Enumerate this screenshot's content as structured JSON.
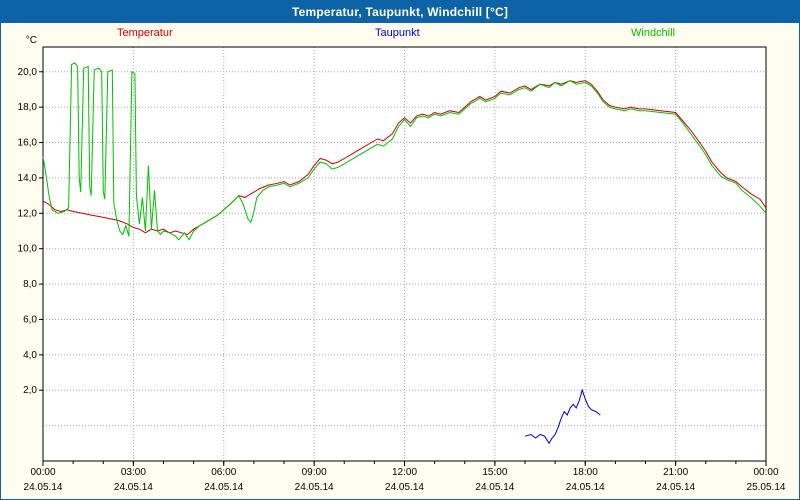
{
  "window": {
    "title": "Temperatur, Taupunkt, Windchill [°C]"
  },
  "legend": [
    {
      "label": "Temperatur",
      "color": "#cc0000"
    },
    {
      "label": "Taupunkt",
      "color": "#0000cc"
    },
    {
      "label": "Windchill",
      "color": "#00c000"
    }
  ],
  "chart_data": {
    "type": "line",
    "title": "Temperatur, Taupunkt, Windchill [°C]",
    "ylabel": "°C",
    "xlabel": "",
    "ylim": [
      -2,
      21.4
    ],
    "xlim_hours": [
      0,
      24
    ],
    "grid": true,
    "legend_position": "top",
    "grid_values": [
      0,
      2,
      4,
      6,
      8,
      10,
      12,
      14,
      16,
      18,
      20
    ],
    "y_ticks": [
      {
        "v": 20,
        "label": "20,0"
      },
      {
        "v": 18,
        "label": "18,0"
      },
      {
        "v": 16,
        "label": "16,0"
      },
      {
        "v": 14,
        "label": "14,0"
      },
      {
        "v": 12,
        "label": "12,0"
      },
      {
        "v": 10,
        "label": "10,0"
      },
      {
        "v": 8,
        "label": "8,0"
      },
      {
        "v": 6,
        "label": "6,0"
      },
      {
        "v": 4,
        "label": "4,0"
      },
      {
        "v": 2,
        "label": "2,0"
      }
    ],
    "x_ticks": [
      {
        "h": 0,
        "label": "00:00",
        "date": "24.05.14"
      },
      {
        "h": 3,
        "label": "03:00",
        "date": "24.05.14"
      },
      {
        "h": 6,
        "label": "06:00",
        "date": "24.05.14"
      },
      {
        "h": 9,
        "label": "09:00",
        "date": "24.05.14"
      },
      {
        "h": 12,
        "label": "12:00",
        "date": "24.05.14"
      },
      {
        "h": 15,
        "label": "15:00",
        "date": "24.05.14"
      },
      {
        "h": 18,
        "label": "18:00",
        "date": "24.05.14"
      },
      {
        "h": 21,
        "label": "21:00",
        "date": "24.05.14"
      },
      {
        "h": 24,
        "label": "00:00",
        "date": "25.05.14"
      }
    ],
    "series": [
      {
        "name": "Temperatur",
        "color": "#cc0000",
        "points": [
          [
            0,
            12.7
          ],
          [
            0.2,
            12.5
          ],
          [
            0.4,
            12.2
          ],
          [
            0.6,
            12.1
          ],
          [
            0.8,
            12.2
          ],
          [
            1.0,
            12.1
          ],
          [
            1.3,
            12.0
          ],
          [
            1.6,
            11.9
          ],
          [
            1.9,
            11.8
          ],
          [
            2.2,
            11.7
          ],
          [
            2.5,
            11.6
          ],
          [
            2.8,
            11.4
          ],
          [
            3.0,
            11.2
          ],
          [
            3.2,
            11.1
          ],
          [
            3.4,
            10.9
          ],
          [
            3.6,
            11.1
          ],
          [
            3.8,
            11.0
          ],
          [
            4.0,
            11.1
          ],
          [
            4.2,
            10.9
          ],
          [
            4.4,
            11.0
          ],
          [
            4.6,
            10.9
          ],
          [
            4.8,
            10.8
          ],
          [
            5.0,
            11.1
          ],
          [
            5.2,
            11.3
          ],
          [
            5.5,
            11.6
          ],
          [
            5.8,
            11.9
          ],
          [
            6.0,
            12.2
          ],
          [
            6.2,
            12.5
          ],
          [
            6.5,
            13.0
          ],
          [
            6.7,
            12.9
          ],
          [
            7.0,
            13.2
          ],
          [
            7.2,
            13.4
          ],
          [
            7.5,
            13.6
          ],
          [
            7.8,
            13.7
          ],
          [
            8.0,
            13.8
          ],
          [
            8.2,
            13.6
          ],
          [
            8.5,
            13.8
          ],
          [
            8.8,
            14.2
          ],
          [
            9.0,
            14.7
          ],
          [
            9.2,
            15.1
          ],
          [
            9.4,
            15.0
          ],
          [
            9.6,
            14.8
          ],
          [
            9.8,
            14.9
          ],
          [
            10.0,
            15.1
          ],
          [
            10.3,
            15.4
          ],
          [
            10.6,
            15.7
          ],
          [
            10.9,
            16.0
          ],
          [
            11.1,
            16.2
          ],
          [
            11.3,
            16.1
          ],
          [
            11.6,
            16.5
          ],
          [
            11.8,
            17.1
          ],
          [
            12.0,
            17.4
          ],
          [
            12.2,
            17.1
          ],
          [
            12.4,
            17.5
          ],
          [
            12.6,
            17.6
          ],
          [
            12.8,
            17.5
          ],
          [
            13.0,
            17.7
          ],
          [
            13.2,
            17.6
          ],
          [
            13.5,
            17.8
          ],
          [
            13.8,
            17.7
          ],
          [
            14.0,
            18.0
          ],
          [
            14.2,
            18.3
          ],
          [
            14.5,
            18.6
          ],
          [
            14.7,
            18.4
          ],
          [
            15.0,
            18.6
          ],
          [
            15.2,
            18.9
          ],
          [
            15.5,
            18.8
          ],
          [
            15.8,
            19.1
          ],
          [
            16.0,
            19.2
          ],
          [
            16.2,
            19.0
          ],
          [
            16.5,
            19.3
          ],
          [
            16.8,
            19.2
          ],
          [
            17.0,
            19.4
          ],
          [
            17.2,
            19.3
          ],
          [
            17.5,
            19.5
          ],
          [
            17.7,
            19.4
          ],
          [
            18.0,
            19.5
          ],
          [
            18.2,
            19.3
          ],
          [
            18.4,
            18.9
          ],
          [
            18.6,
            18.4
          ],
          [
            18.8,
            18.1
          ],
          [
            19.0,
            18.0
          ],
          [
            19.3,
            17.9
          ],
          [
            19.5,
            18.0
          ],
          [
            19.8,
            17.9
          ],
          [
            20.0,
            17.9
          ],
          [
            20.5,
            17.8
          ],
          [
            21.0,
            17.7
          ],
          [
            21.2,
            17.3
          ],
          [
            21.5,
            16.7
          ],
          [
            21.8,
            16.0
          ],
          [
            22.0,
            15.5
          ],
          [
            22.2,
            14.9
          ],
          [
            22.5,
            14.3
          ],
          [
            22.7,
            14.0
          ],
          [
            23.0,
            13.8
          ],
          [
            23.2,
            13.5
          ],
          [
            23.5,
            13.1
          ],
          [
            23.8,
            12.8
          ],
          [
            24.0,
            12.3
          ]
        ]
      },
      {
        "name": "Taupunkt",
        "color": "#0000cc",
        "points": [
          [
            16.0,
            -0.6
          ],
          [
            16.2,
            -0.5
          ],
          [
            16.35,
            -0.7
          ],
          [
            16.5,
            -0.5
          ],
          [
            16.65,
            -0.6
          ],
          [
            16.8,
            -1.0
          ],
          [
            16.9,
            -0.7
          ],
          [
            17.0,
            -0.5
          ],
          [
            17.1,
            -0.1
          ],
          [
            17.2,
            0.4
          ],
          [
            17.3,
            0.8
          ],
          [
            17.4,
            0.6
          ],
          [
            17.5,
            1.0
          ],
          [
            17.6,
            1.2
          ],
          [
            17.7,
            1.0
          ],
          [
            17.8,
            1.4
          ],
          [
            17.9,
            2.0
          ],
          [
            18.0,
            1.5
          ],
          [
            18.1,
            1.1
          ],
          [
            18.2,
            0.9
          ],
          [
            18.35,
            0.8
          ],
          [
            18.5,
            0.6
          ]
        ]
      },
      {
        "name": "Windchill",
        "color": "#00c000",
        "points": [
          [
            0,
            15.2
          ],
          [
            0.1,
            14.2
          ],
          [
            0.2,
            13.0
          ],
          [
            0.3,
            12.2
          ],
          [
            0.5,
            12.0
          ],
          [
            0.7,
            12.1
          ],
          [
            0.85,
            12.3
          ],
          [
            0.95,
            20.4
          ],
          [
            1.05,
            20.5
          ],
          [
            1.15,
            20.3
          ],
          [
            1.2,
            14.0
          ],
          [
            1.25,
            13.2
          ],
          [
            1.35,
            20.2
          ],
          [
            1.5,
            20.3
          ],
          [
            1.55,
            13.5
          ],
          [
            1.6,
            13.0
          ],
          [
            1.7,
            20.1
          ],
          [
            1.85,
            20.2
          ],
          [
            1.95,
            20.0
          ],
          [
            2.0,
            13.2
          ],
          [
            2.05,
            12.8
          ],
          [
            2.15,
            20.0
          ],
          [
            2.3,
            20.1
          ],
          [
            2.35,
            12.6
          ],
          [
            2.45,
            11.6
          ],
          [
            2.55,
            11.0
          ],
          [
            2.65,
            10.8
          ],
          [
            2.75,
            11.3
          ],
          [
            2.85,
            10.7
          ],
          [
            2.95,
            20.0
          ],
          [
            3.05,
            19.9
          ],
          [
            3.1,
            13.0
          ],
          [
            3.2,
            11.4
          ],
          [
            3.3,
            12.9
          ],
          [
            3.4,
            11.0
          ],
          [
            3.5,
            14.7
          ],
          [
            3.6,
            11.1
          ],
          [
            3.7,
            13.3
          ],
          [
            3.8,
            11.0
          ],
          [
            3.9,
            10.8
          ],
          [
            4.0,
            11.0
          ],
          [
            4.2,
            10.9
          ],
          [
            4.4,
            10.7
          ],
          [
            4.5,
            10.5
          ],
          [
            4.7,
            10.9
          ],
          [
            4.85,
            10.5
          ],
          [
            5.0,
            11.0
          ],
          [
            5.2,
            11.3
          ],
          [
            5.5,
            11.6
          ],
          [
            5.8,
            11.9
          ],
          [
            6.0,
            12.2
          ],
          [
            6.2,
            12.5
          ],
          [
            6.5,
            13.0
          ],
          [
            6.65,
            12.5
          ],
          [
            6.8,
            11.7
          ],
          [
            6.9,
            11.5
          ],
          [
            7.0,
            12.1
          ],
          [
            7.1,
            12.9
          ],
          [
            7.3,
            13.3
          ],
          [
            7.5,
            13.5
          ],
          [
            7.8,
            13.6
          ],
          [
            8.0,
            13.7
          ],
          [
            8.2,
            13.5
          ],
          [
            8.5,
            13.7
          ],
          [
            8.8,
            14.0
          ],
          [
            9.0,
            14.5
          ],
          [
            9.2,
            14.9
          ],
          [
            9.4,
            14.8
          ],
          [
            9.6,
            14.5
          ],
          [
            9.8,
            14.6
          ],
          [
            10.0,
            14.8
          ],
          [
            10.3,
            15.1
          ],
          [
            10.6,
            15.4
          ],
          [
            10.9,
            15.7
          ],
          [
            11.1,
            15.9
          ],
          [
            11.3,
            15.8
          ],
          [
            11.6,
            16.2
          ],
          [
            11.8,
            16.9
          ],
          [
            12.0,
            17.3
          ],
          [
            12.2,
            16.9
          ],
          [
            12.4,
            17.4
          ],
          [
            12.6,
            17.5
          ],
          [
            12.8,
            17.4
          ],
          [
            13.0,
            17.6
          ],
          [
            13.2,
            17.5
          ],
          [
            13.5,
            17.7
          ],
          [
            13.8,
            17.6
          ],
          [
            14.0,
            17.9
          ],
          [
            14.2,
            18.2
          ],
          [
            14.5,
            18.5
          ],
          [
            14.7,
            18.3
          ],
          [
            15.0,
            18.5
          ],
          [
            15.2,
            18.8
          ],
          [
            15.5,
            18.7
          ],
          [
            15.8,
            19.0
          ],
          [
            16.0,
            19.1
          ],
          [
            16.2,
            18.9
          ],
          [
            16.5,
            19.3
          ],
          [
            16.8,
            19.1
          ],
          [
            17.0,
            19.4
          ],
          [
            17.2,
            19.2
          ],
          [
            17.5,
            19.5
          ],
          [
            17.7,
            19.3
          ],
          [
            18.0,
            19.4
          ],
          [
            18.2,
            19.2
          ],
          [
            18.4,
            18.8
          ],
          [
            18.6,
            18.3
          ],
          [
            18.8,
            18.0
          ],
          [
            19.0,
            17.9
          ],
          [
            19.3,
            17.8
          ],
          [
            19.5,
            17.9
          ],
          [
            19.8,
            17.8
          ],
          [
            20.0,
            17.8
          ],
          [
            20.5,
            17.7
          ],
          [
            21.0,
            17.6
          ],
          [
            21.2,
            17.2
          ],
          [
            21.5,
            16.5
          ],
          [
            21.8,
            15.8
          ],
          [
            22.0,
            15.3
          ],
          [
            22.2,
            14.7
          ],
          [
            22.5,
            14.1
          ],
          [
            22.7,
            13.9
          ],
          [
            23.0,
            13.7
          ],
          [
            23.2,
            13.3
          ],
          [
            23.5,
            12.9
          ],
          [
            23.8,
            12.4
          ],
          [
            24.0,
            12.0
          ]
        ]
      }
    ]
  }
}
